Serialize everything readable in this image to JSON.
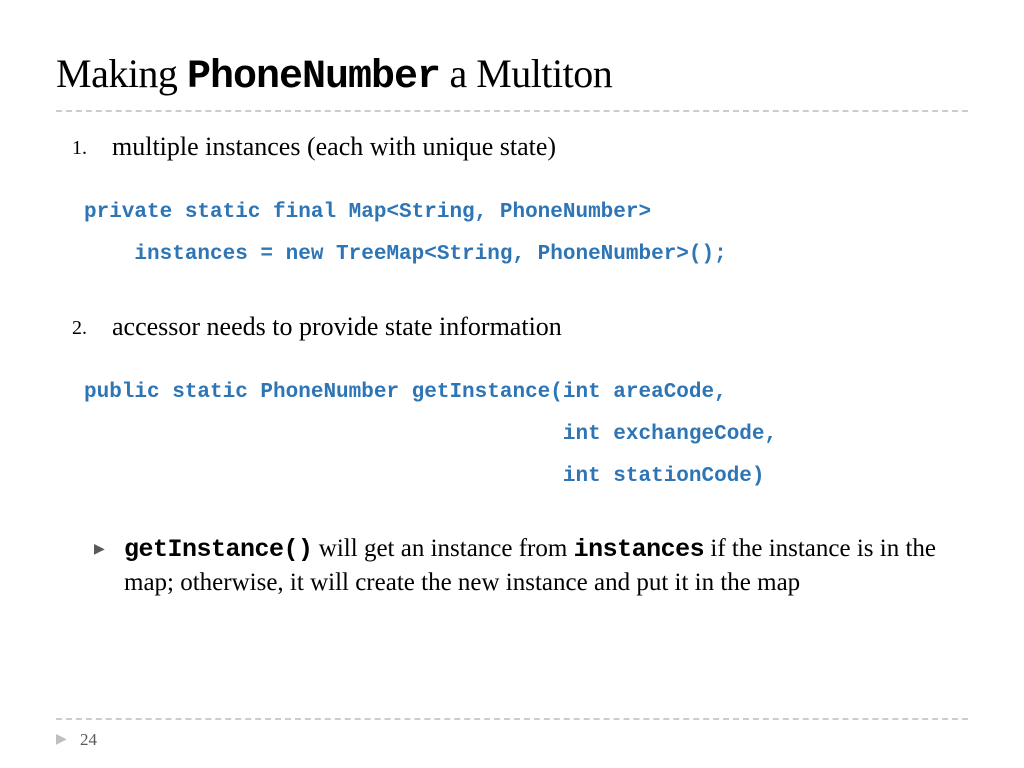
{
  "title": {
    "pre": "Making ",
    "code": "PhoneNumber",
    "post": " a Multiton"
  },
  "items": [
    {
      "marker": "1.",
      "text": "multiple instances (each with unique state)",
      "code": "private static final Map<String, PhoneNumber>\n    instances = new TreeMap<String, PhoneNumber>();"
    },
    {
      "marker": "2.",
      "text": "accessor needs to provide state information",
      "code": "public static PhoneNumber getInstance(int areaCode,\n                                      int exchangeCode,\n                                      int stationCode)",
      "sub": {
        "code1": "getInstance()",
        "mid1": " will get an instance from ",
        "code2": "instances",
        "mid2": " if the instance is in the map; otherwise, it will create the new instance and put it in the map"
      }
    }
  ],
  "page_number": "24",
  "colors": {
    "code": "#2e75b6",
    "divider": "#cccccc",
    "text": "#000000",
    "footer_arrow": "#bfbfbf",
    "page_num": "#595959"
  },
  "typography": {
    "title_fontsize": 40,
    "body_fontsize": 26,
    "code_fontsize": 21,
    "sub_fontsize": 25,
    "marker_fontsize": 20,
    "body_font": "Georgia, serif",
    "code_font": "Courier New, monospace"
  }
}
